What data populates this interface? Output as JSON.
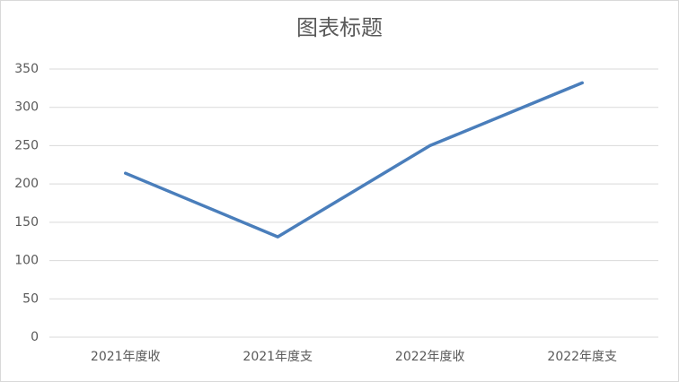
{
  "chart_data": {
    "type": "line",
    "title": "图表标题",
    "categories": [
      "2021年度收",
      "2021年度支",
      "2022年度收",
      "2022年度支"
    ],
    "values": [
      214,
      131,
      250,
      332
    ],
    "color": "#4a7ebb",
    "ylim": [
      0,
      350
    ],
    "yticks": [
      0,
      50,
      100,
      150,
      200,
      250,
      300,
      350
    ],
    "grid": true
  }
}
